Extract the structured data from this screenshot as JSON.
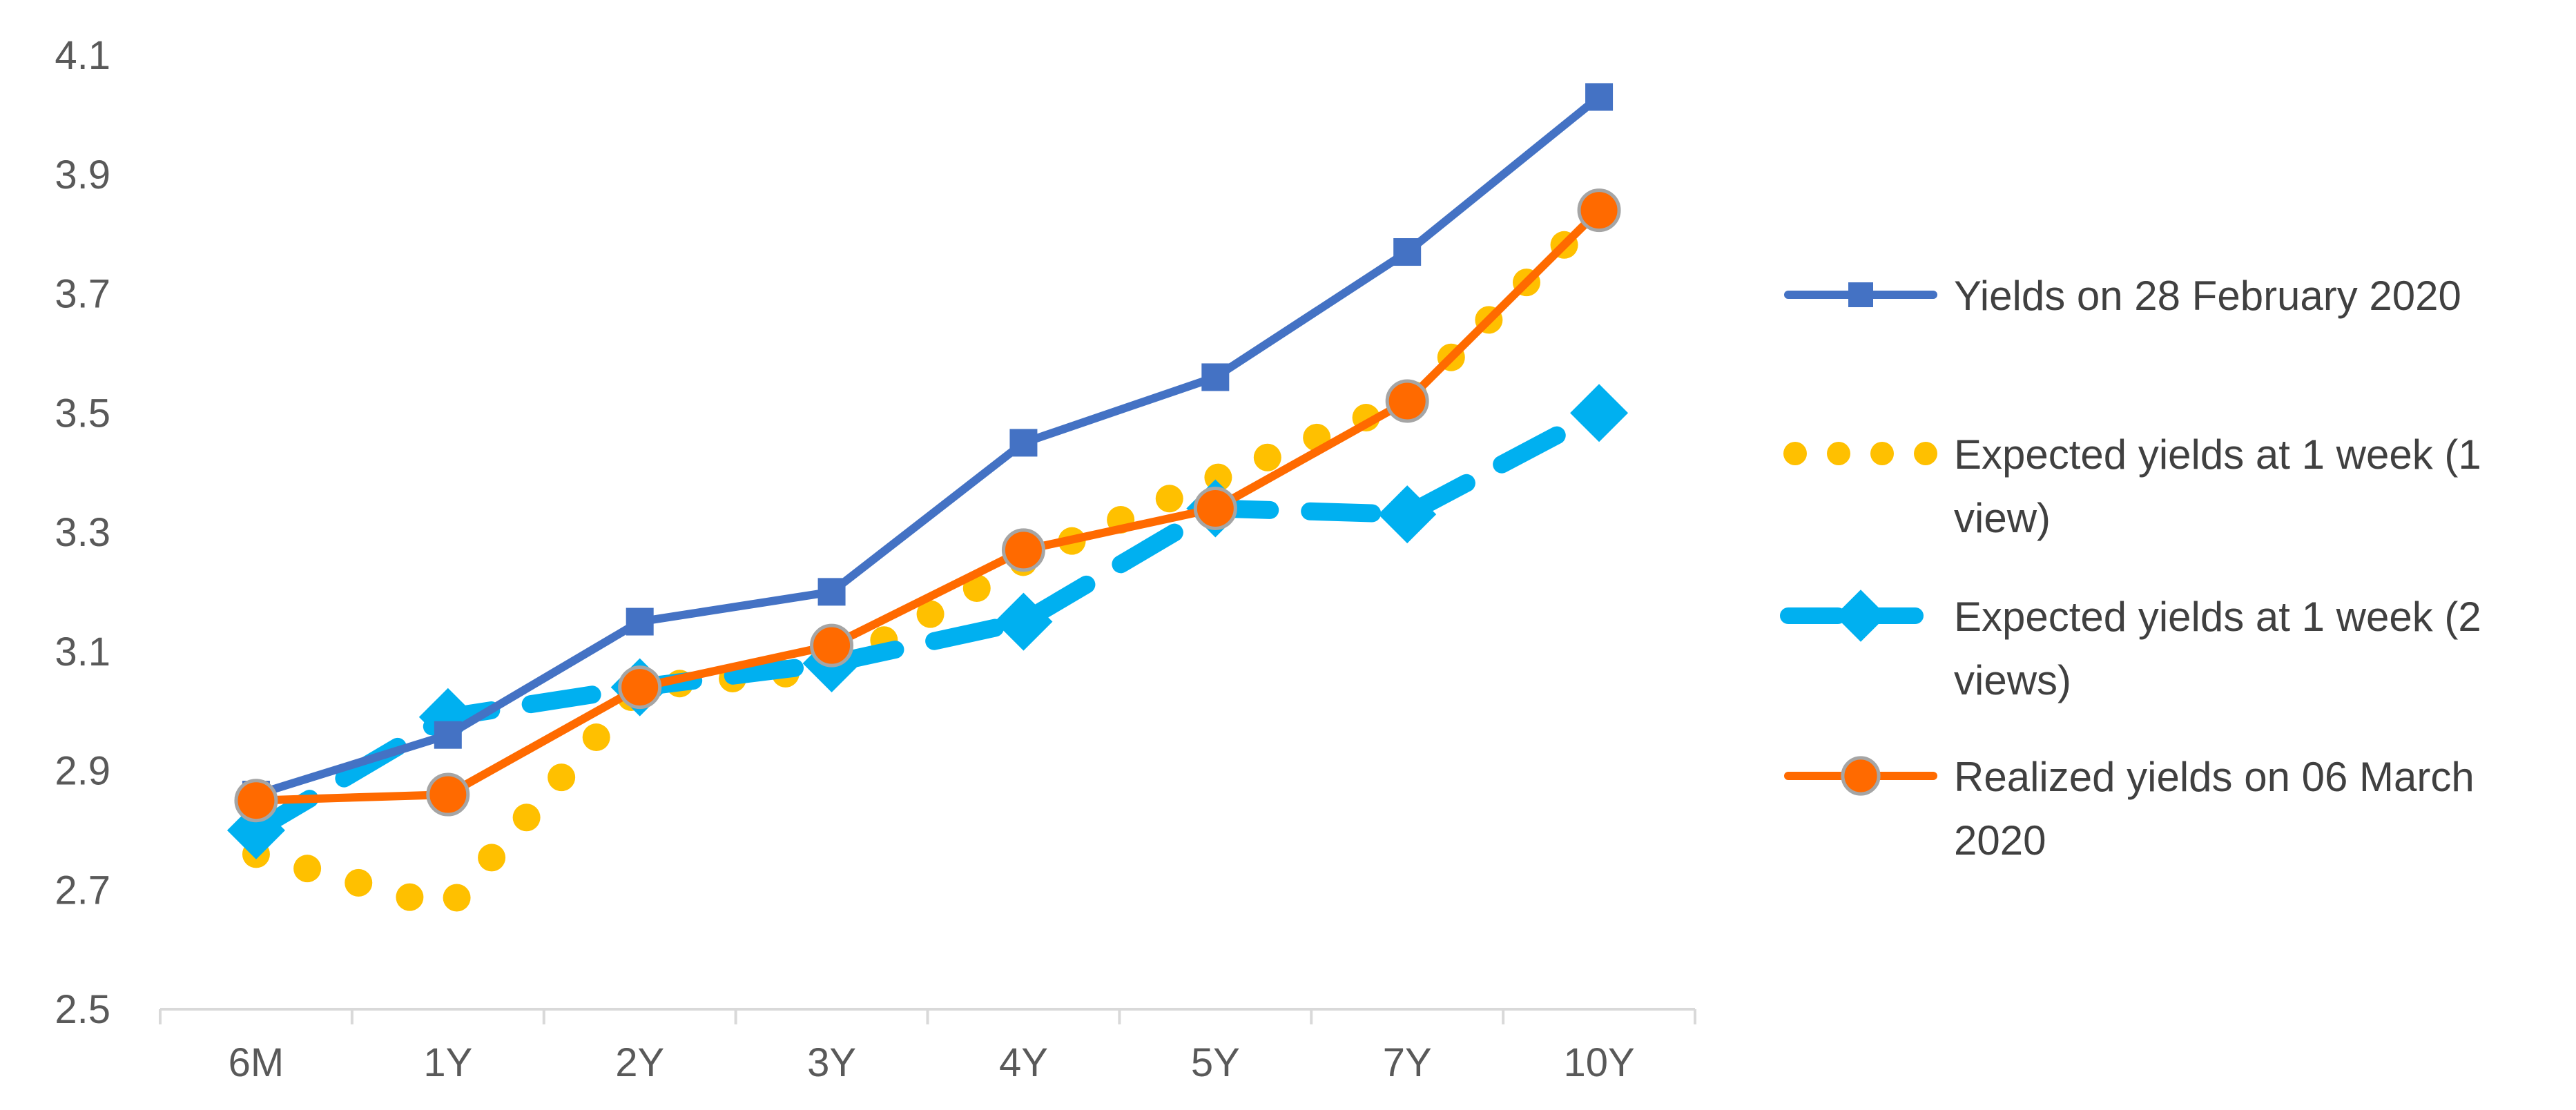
{
  "chart_data": {
    "type": "line",
    "categories": [
      "6M",
      "1Y",
      "2Y",
      "3Y",
      "4Y",
      "5Y",
      "7Y",
      "10Y"
    ],
    "ylim": [
      2.5,
      4.1
    ],
    "yticks": [
      "2.5",
      "2.7",
      "2.9",
      "3.1",
      "3.3",
      "3.5",
      "3.7",
      "3.9",
      "4.1"
    ],
    "grid": false,
    "legend_position": "right",
    "series": [
      {
        "name": "Yields on 28 February 2020",
        "label_lines": [
          "Yields on 28 February 2020"
        ],
        "values": [
          2.86,
          2.96,
          3.15,
          3.2,
          3.45,
          3.56,
          3.77,
          4.03
        ],
        "color": "#4472C4",
        "style": "solid",
        "marker": "square"
      },
      {
        "name": "Expected yields at 1 week (1 view)",
        "label_lines": [
          "Expected yields at 1 week (1",
          "view)"
        ],
        "values": [
          2.76,
          2.67,
          3.04,
          3.07,
          3.25,
          3.39,
          3.52,
          3.84
        ],
        "color": "#FFC000",
        "style": "dotted",
        "marker": "none"
      },
      {
        "name": "Expected yields at 1 week (2 views)",
        "label_lines": [
          "Expected yields at 1 week (2",
          "views)"
        ],
        "values": [
          2.8,
          2.99,
          3.04,
          3.08,
          3.15,
          3.34,
          3.33,
          3.5
        ],
        "color": "#00B0F0",
        "style": "dashed",
        "marker": "diamond"
      },
      {
        "name": "Realized yields on 06 March 2020",
        "label_lines": [
          "Realized yields on 06 March",
          "2020"
        ],
        "values": [
          2.85,
          2.86,
          3.04,
          3.11,
          3.27,
          3.34,
          3.52,
          3.84
        ],
        "color": "#FF6A00",
        "style": "solid",
        "marker": "circle"
      }
    ]
  }
}
